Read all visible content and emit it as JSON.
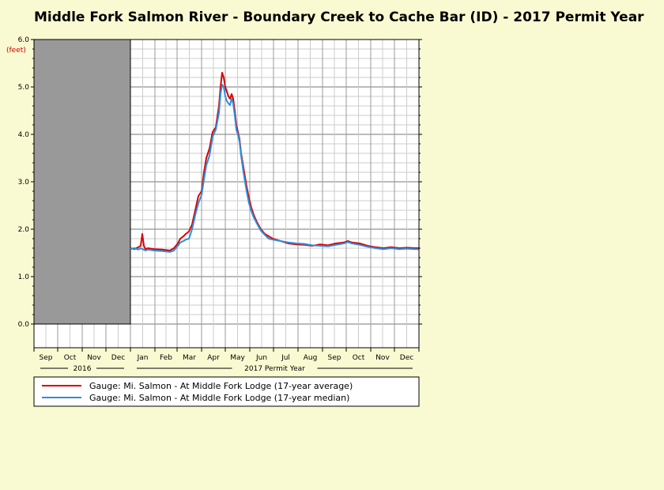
{
  "chart_data": {
    "type": "line",
    "title": "Middle Fork Salmon River - Boundary Creek to Cache Bar (ID) - 2017 Permit Year",
    "ylabel": "(feet)",
    "ylim": [
      0,
      6
    ],
    "y_ticks": [
      "0.0",
      "1.0",
      "2.0",
      "3.0",
      "4.0",
      "5.0",
      "6.0"
    ],
    "x_range_days": [
      -122,
      365
    ],
    "months": [
      "Sep",
      "Oct",
      "Nov",
      "Dec",
      "Jan",
      "Feb",
      "Mar",
      "Apr",
      "May",
      "Jun",
      "Jul",
      "Aug",
      "Sep",
      "Oct",
      "Nov",
      "Dec"
    ],
    "period_labels": [
      {
        "label": "2016"
      },
      {
        "label": "2017 Permit Year"
      }
    ],
    "no_data_region": {
      "from_day": -122,
      "to_day": 0,
      "color": "#999999"
    },
    "grid": true,
    "legend_position": "bottom",
    "series": [
      {
        "name": "Gauge: Mi. Salmon - At Middle Fork Lodge (17-year average)",
        "color": "#dd0000",
        "x": [
          0,
          5,
          10,
          13,
          15,
          17,
          19,
          22,
          30,
          40,
          50,
          55,
          60,
          63,
          67,
          70,
          74,
          78,
          82,
          86,
          90,
          93,
          96,
          100,
          104,
          108,
          112,
          114,
          116,
          118,
          120,
          122,
          124,
          126,
          128,
          130,
          132,
          134,
          136,
          138,
          140,
          143,
          147,
          150,
          153,
          156,
          160,
          165,
          170,
          175,
          180,
          190,
          200,
          210,
          220,
          230,
          240,
          250,
          260,
          270,
          275,
          280,
          290,
          300,
          310,
          320,
          330,
          340,
          350,
          360,
          365
        ],
        "y": [
          1.6,
          1.58,
          1.62,
          1.65,
          1.9,
          1.65,
          1.58,
          1.6,
          1.58,
          1.57,
          1.55,
          1.6,
          1.7,
          1.8,
          1.85,
          1.9,
          1.95,
          2.1,
          2.4,
          2.7,
          2.8,
          3.2,
          3.5,
          3.7,
          4.05,
          4.15,
          4.6,
          5.0,
          5.3,
          5.2,
          5.0,
          4.9,
          4.8,
          4.75,
          4.85,
          4.75,
          4.5,
          4.2,
          4.05,
          3.9,
          3.6,
          3.3,
          2.9,
          2.65,
          2.45,
          2.3,
          2.15,
          2.0,
          1.9,
          1.85,
          1.8,
          1.75,
          1.7,
          1.68,
          1.67,
          1.65,
          1.68,
          1.66,
          1.7,
          1.72,
          1.75,
          1.72,
          1.7,
          1.65,
          1.62,
          1.6,
          1.62,
          1.6,
          1.61,
          1.6,
          1.6
        ]
      },
      {
        "name": "Gauge: Mi. Salmon - At Middle Fork Lodge (17-year median)",
        "color": "#2b8fdd",
        "x": [
          0,
          5,
          10,
          13,
          15,
          17,
          19,
          22,
          30,
          40,
          50,
          55,
          60,
          63,
          67,
          70,
          74,
          78,
          82,
          86,
          90,
          93,
          96,
          100,
          104,
          108,
          112,
          114,
          116,
          118,
          120,
          122,
          124,
          126,
          128,
          130,
          132,
          134,
          136,
          138,
          140,
          143,
          147,
          150,
          153,
          156,
          160,
          165,
          170,
          175,
          180,
          190,
          200,
          210,
          220,
          230,
          240,
          250,
          260,
          270,
          275,
          280,
          290,
          300,
          310,
          320,
          330,
          340,
          350,
          360,
          365
        ],
        "y": [
          1.58,
          1.6,
          1.57,
          1.6,
          1.58,
          1.57,
          1.55,
          1.57,
          1.55,
          1.54,
          1.52,
          1.55,
          1.65,
          1.72,
          1.75,
          1.78,
          1.8,
          2.0,
          2.3,
          2.55,
          2.72,
          3.05,
          3.35,
          3.55,
          3.95,
          4.1,
          4.45,
          4.85,
          5.05,
          5.0,
          4.8,
          4.7,
          4.65,
          4.62,
          4.75,
          4.65,
          4.4,
          4.1,
          4.0,
          3.85,
          3.55,
          3.2,
          2.8,
          2.55,
          2.38,
          2.25,
          2.12,
          1.97,
          1.88,
          1.8,
          1.78,
          1.75,
          1.72,
          1.7,
          1.69,
          1.66,
          1.65,
          1.64,
          1.67,
          1.7,
          1.73,
          1.7,
          1.67,
          1.63,
          1.6,
          1.58,
          1.6,
          1.58,
          1.59,
          1.58,
          1.58
        ]
      }
    ]
  }
}
